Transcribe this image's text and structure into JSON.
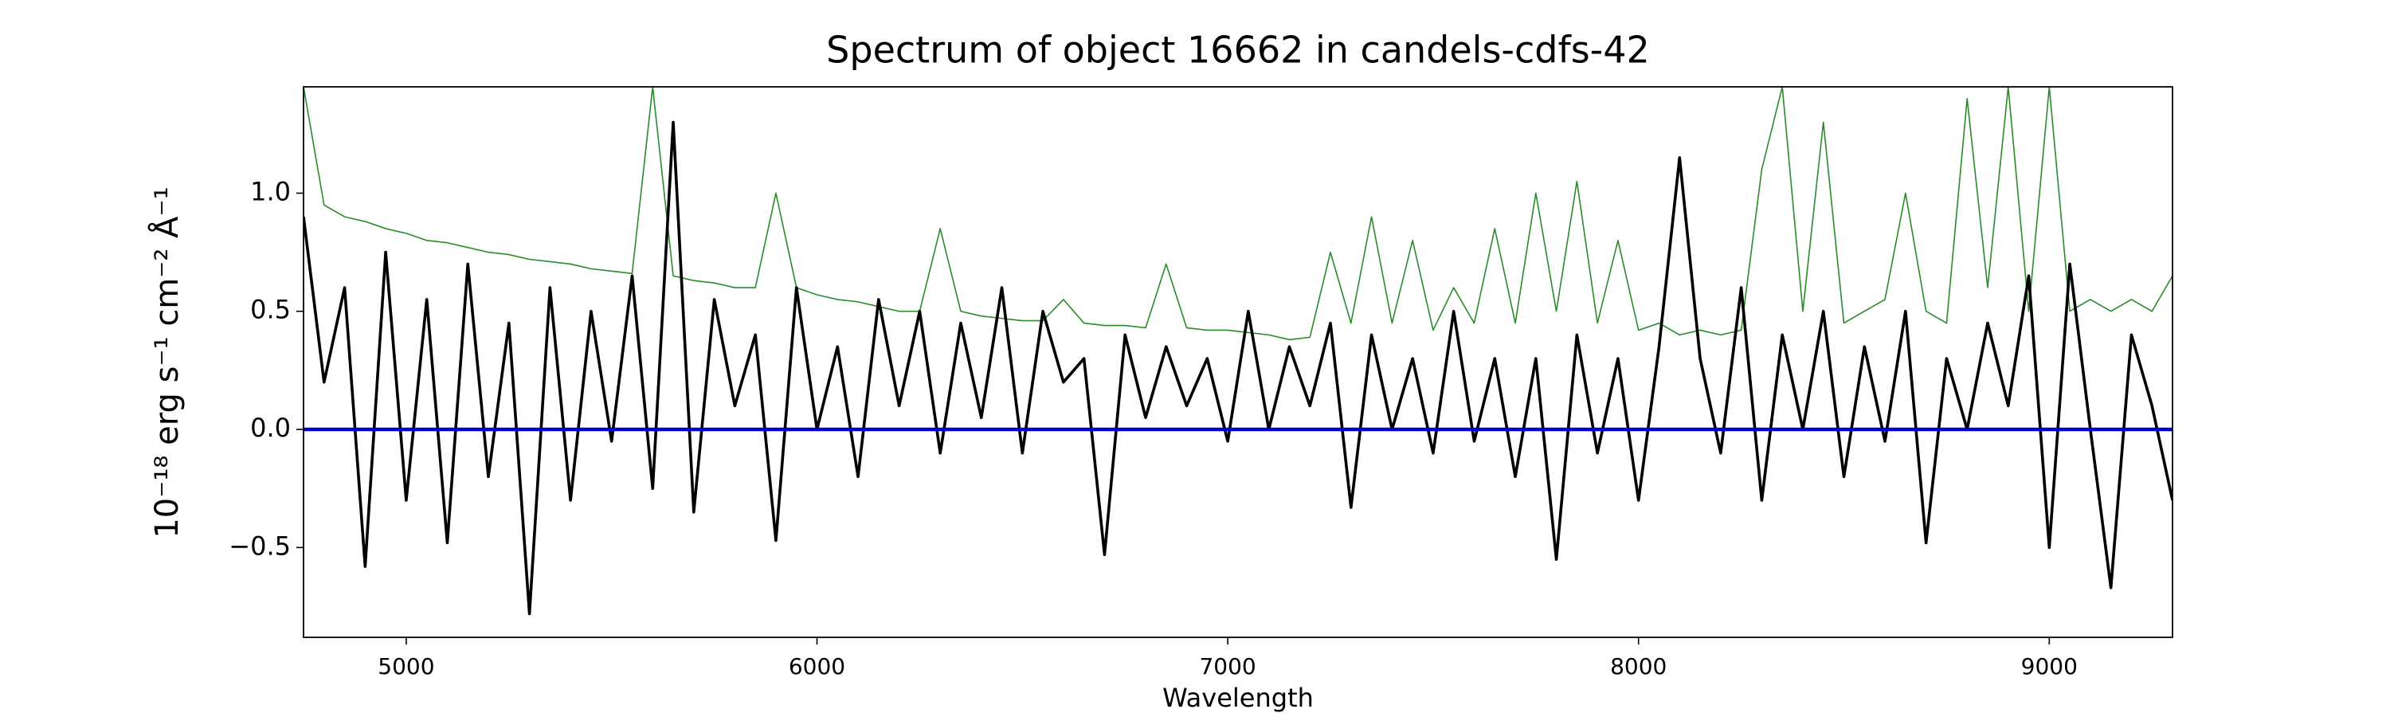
{
  "chart_data": {
    "type": "line",
    "title": "Spectrum of object 16662 in candels-cdfs-42",
    "xlabel": "Wavelength",
    "ylabel": "10⁻¹⁸ erg s⁻¹ cm⁻² Å⁻¹",
    "x": [
      4750,
      4800,
      4850,
      4900,
      4950,
      5000,
      5050,
      5100,
      5150,
      5200,
      5250,
      5300,
      5350,
      5400,
      5450,
      5500,
      5550,
      5600,
      5650,
      5700,
      5750,
      5800,
      5850,
      5900,
      5950,
      6000,
      6050,
      6100,
      6150,
      6200,
      6250,
      6300,
      6350,
      6400,
      6450,
      6500,
      6550,
      6600,
      6650,
      6700,
      6750,
      6800,
      6850,
      6900,
      6950,
      7000,
      7050,
      7100,
      7150,
      7200,
      7250,
      7300,
      7350,
      7400,
      7450,
      7500,
      7550,
      7600,
      7650,
      7700,
      7750,
      7800,
      7850,
      7900,
      7950,
      8000,
      8050,
      8100,
      8150,
      8200,
      8250,
      8300,
      8350,
      8400,
      8450,
      8500,
      8550,
      8600,
      8650,
      8700,
      8750,
      8800,
      8850,
      8900,
      8950,
      9000,
      9050,
      9100,
      9150,
      9200,
      9250,
      9300
    ],
    "series": [
      {
        "color": "#2a8a2a",
        "values": [
          1.45,
          0.95,
          0.9,
          0.88,
          0.85,
          0.83,
          0.8,
          0.79,
          0.77,
          0.75,
          0.74,
          0.72,
          0.71,
          0.7,
          0.68,
          0.67,
          0.66,
          1.45,
          0.65,
          0.63,
          0.62,
          0.6,
          0.6,
          1.0,
          0.6,
          0.57,
          0.55,
          0.54,
          0.52,
          0.5,
          0.5,
          0.85,
          0.5,
          0.48,
          0.47,
          0.46,
          0.46,
          0.55,
          0.45,
          0.44,
          0.44,
          0.43,
          0.7,
          0.43,
          0.42,
          0.42,
          0.41,
          0.4,
          0.38,
          0.39,
          0.75,
          0.45,
          0.9,
          0.45,
          0.8,
          0.42,
          0.6,
          0.45,
          0.85,
          0.45,
          1.0,
          0.5,
          1.05,
          0.45,
          0.8,
          0.42,
          0.45,
          0.4,
          0.42,
          0.4,
          0.42,
          1.1,
          1.45,
          0.5,
          1.3,
          0.45,
          0.5,
          0.55,
          1.0,
          0.5,
          0.45,
          1.4,
          0.6,
          1.45,
          0.5,
          1.45,
          0.5,
          0.55,
          0.5,
          0.55,
          0.5,
          0.65
        ]
      },
      {
        "color": "#000000",
        "values": [
          0.9,
          0.2,
          0.6,
          -0.58,
          0.75,
          -0.3,
          0.55,
          -0.48,
          0.7,
          -0.2,
          0.45,
          -0.78,
          0.6,
          -0.3,
          0.5,
          -0.05,
          0.65,
          -0.25,
          1.3,
          -0.35,
          0.55,
          0.1,
          0.4,
          -0.47,
          0.6,
          0.0,
          0.35,
          -0.2,
          0.55,
          0.1,
          0.5,
          -0.1,
          0.45,
          0.05,
          0.6,
          -0.1,
          0.5,
          0.2,
          0.3,
          -0.53,
          0.4,
          0.05,
          0.35,
          0.1,
          0.3,
          -0.05,
          0.5,
          0.0,
          0.35,
          0.1,
          0.45,
          -0.33,
          0.4,
          0.0,
          0.3,
          -0.1,
          0.5,
          -0.05,
          0.3,
          -0.2,
          0.3,
          -0.55,
          0.4,
          -0.1,
          0.3,
          -0.3,
          0.35,
          1.15,
          0.3,
          -0.1,
          0.6,
          -0.3,
          0.4,
          0.0,
          0.5,
          -0.2,
          0.35,
          -0.05,
          0.5,
          -0.48,
          0.3,
          0.0,
          0.45,
          0.1,
          0.65,
          -0.5,
          0.7,
          0.0,
          -0.67,
          0.4,
          0.1,
          -0.3
        ]
      },
      {
        "color": "#0000cc",
        "values": [
          0,
          0,
          0,
          0,
          0,
          0,
          0,
          0,
          0,
          0,
          0,
          0,
          0,
          0,
          0,
          0,
          0,
          0,
          0,
          0,
          0,
          0,
          0,
          0,
          0,
          0,
          0,
          0,
          0,
          0,
          0,
          0,
          0,
          0,
          0,
          0,
          0,
          0,
          0,
          0,
          0,
          0,
          0,
          0,
          0,
          0,
          0,
          0,
          0,
          0,
          0,
          0,
          0,
          0,
          0,
          0,
          0,
          0,
          0,
          0,
          0,
          0,
          0,
          0,
          0,
          0,
          0,
          0,
          0,
          0,
          0,
          0,
          0,
          0,
          0,
          0,
          0,
          0,
          0,
          0,
          0,
          0,
          0,
          0,
          0,
          0,
          0,
          0,
          0,
          0,
          0,
          0
        ]
      }
    ],
    "xlim": [
      4750,
      9300
    ],
    "ylim": [
      -0.88,
      1.45
    ],
    "xticks": [
      5000,
      6000,
      7000,
      8000,
      9000
    ],
    "yticks": [
      {
        "value": -0.5,
        "label": "−0.5"
      },
      {
        "value": 0.0,
        "label": "0.0"
      },
      {
        "value": 0.5,
        "label": "0.5"
      },
      {
        "value": 1.0,
        "label": "1.0"
      }
    ]
  }
}
